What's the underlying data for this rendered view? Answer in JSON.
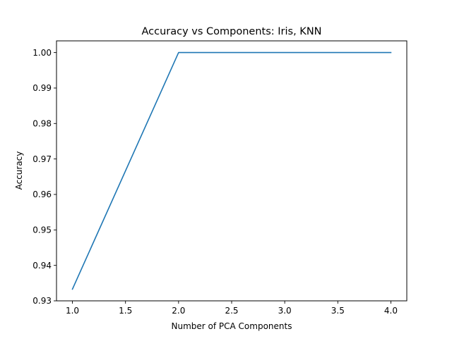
{
  "chart_data": {
    "type": "line",
    "title": "Accuracy vs Components: Iris, KNN",
    "xlabel": "Number of PCA Components",
    "ylabel": "Accuracy",
    "x": [
      1,
      2,
      3,
      4
    ],
    "series": [
      {
        "values": [
          0.9333,
          1.0,
          1.0,
          1.0
        ],
        "color": "#1f77b4"
      }
    ],
    "xlim": [
      0.85,
      4.15
    ],
    "ylim": [
      0.93,
      1.0033
    ],
    "xticks": [
      1.0,
      1.5,
      2.0,
      2.5,
      3.0,
      3.5,
      4.0
    ],
    "xtick_labels": [
      "1.0",
      "1.5",
      "2.0",
      "2.5",
      "3.0",
      "3.5",
      "4.0"
    ],
    "yticks": [
      0.93,
      0.94,
      0.95,
      0.96,
      0.97,
      0.98,
      0.99,
      1.0
    ],
    "ytick_labels": [
      "0.93",
      "0.94",
      "0.95",
      "0.96",
      "0.97",
      "0.98",
      "0.99",
      "1.00"
    ],
    "grid": false,
    "legend": "none"
  }
}
